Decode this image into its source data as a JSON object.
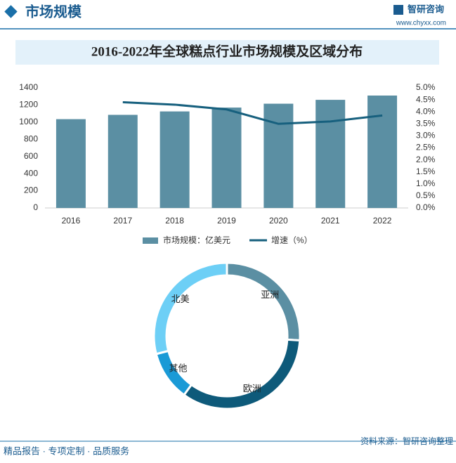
{
  "header": {
    "title": "市场规模",
    "brand": "智研咨询",
    "url": "www.chyxx.com"
  },
  "chart_data": [
    {
      "type": "bar",
      "title": "2016-2022年全球糕点行业市场规模及区域分布",
      "categories": [
        "2016",
        "2017",
        "2018",
        "2019",
        "2020",
        "2021",
        "2022"
      ],
      "series": [
        {
          "name": "市场规模：亿美元",
          "type": "bar",
          "color": "#5b8fa3",
          "values": [
            1035,
            1085,
            1125,
            1170,
            1215,
            1260,
            1310
          ]
        },
        {
          "name": "增速（%）",
          "type": "line",
          "axis": "y2",
          "color": "#17607e",
          "values": [
            null,
            4.4,
            4.3,
            4.1,
            3.5,
            3.6,
            3.85
          ]
        }
      ],
      "ylim": [
        0,
        1400
      ],
      "yticks": [
        0,
        200,
        400,
        600,
        800,
        1000,
        1200,
        1400
      ],
      "y2lim": [
        0,
        5
      ],
      "y2ticks": [
        {
          "value": 0,
          "label": "0.0%"
        },
        {
          "value": 0.5,
          "label": "0.5%"
        },
        {
          "value": 1,
          "label": "1.0%"
        },
        {
          "value": 1.5,
          "label": "1.5%"
        },
        {
          "value": 2,
          "label": "2.0%"
        },
        {
          "value": 2.5,
          "label": "2.5%"
        },
        {
          "value": 3,
          "label": "3.0%"
        },
        {
          "value": 3.5,
          "label": "3.5%"
        },
        {
          "value": 4,
          "label": "4.0%"
        },
        {
          "value": 4.5,
          "label": "4.5%"
        },
        {
          "value": 5,
          "label": "5.0%"
        }
      ],
      "legend": "bottom"
    },
    {
      "type": "donut",
      "categories": [
        "亚洲",
        "欧洲",
        "其他",
        "北美"
      ],
      "values": [
        26,
        34,
        11,
        29
      ],
      "colors": [
        "#5b8fa3",
        "#0e5a7a",
        "#1a9ad6",
        "#6dcff6"
      ]
    }
  ],
  "footer": {
    "slogan": "精品报告 · 专项定制 · 品质服务",
    "source": "资料来源：智研咨询整理"
  }
}
